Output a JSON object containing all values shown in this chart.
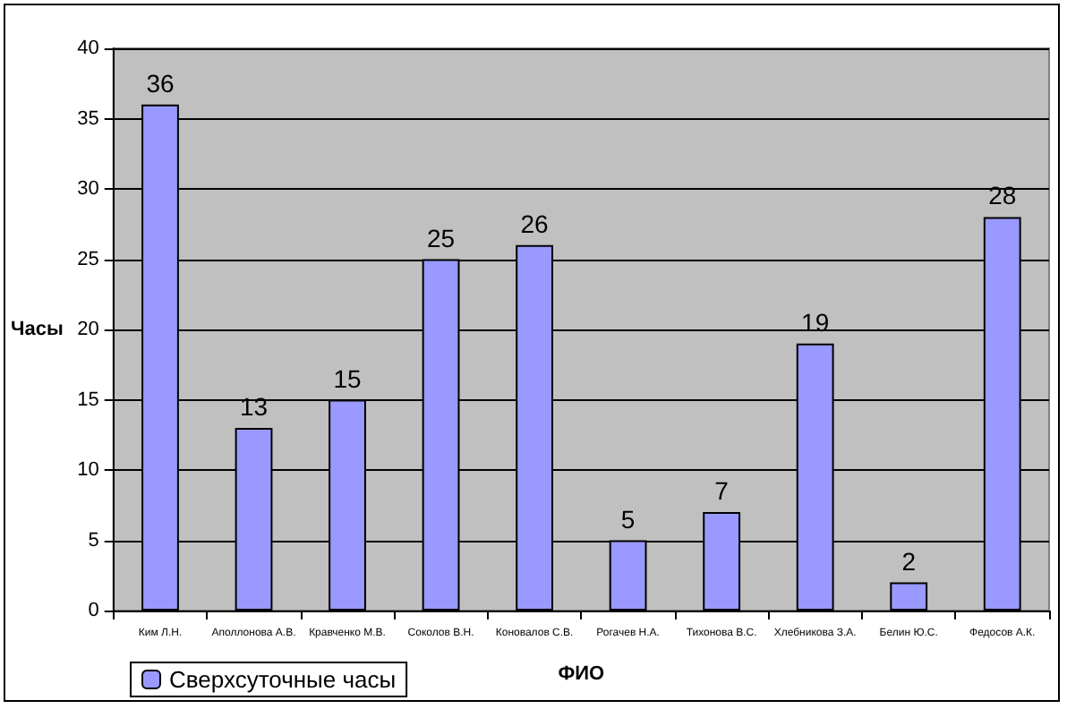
{
  "chart_data": {
    "type": "bar",
    "xlabel": "ФИО",
    "ylabel": "Часы",
    "categories": [
      "Ким Л.Н.",
      "Аполлонова А.В.",
      "Кравченко М.В.",
      "Соколов В.Н.",
      "Коновалов С.В.",
      "Рогачев Н.А.",
      "Тихонова В.С.",
      "Хлебникова З.А.",
      "Белин Ю.С.",
      "Федосов А.К."
    ],
    "series": [
      {
        "name": "Сверхсуточные часы",
        "color": "#9999ff",
        "values": [
          36,
          13,
          15,
          25,
          26,
          5,
          7,
          19,
          2,
          28
        ]
      }
    ],
    "ylim": [
      0,
      40
    ],
    "yticks": [
      0,
      5,
      10,
      15,
      20,
      25,
      30,
      35,
      40
    ],
    "grid": "y",
    "legend": "bottom left",
    "data_labels": true
  }
}
